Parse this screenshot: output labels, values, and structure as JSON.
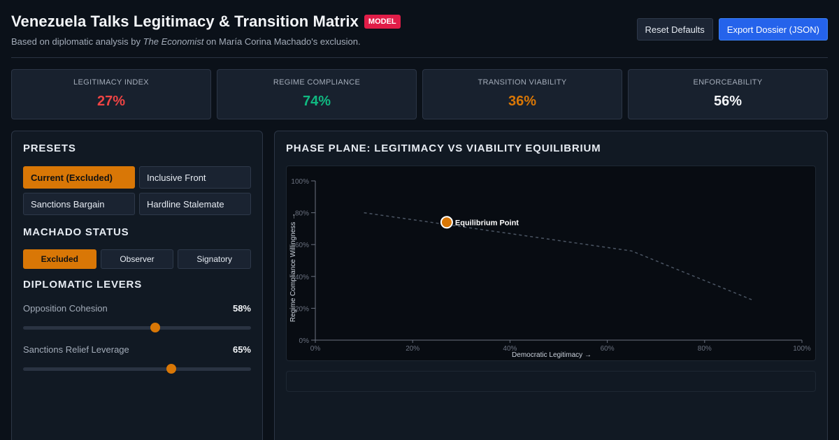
{
  "header": {
    "title": "Venezuela Talks Legitimacy & Transition Matrix",
    "badge": "MODEL",
    "subtitle_prefix": "Based on diplomatic analysis by ",
    "subtitle_source": "The Economist",
    "subtitle_suffix": " on María Corina Machado's exclusion.",
    "reset_label": "Reset Defaults",
    "export_label": "Export Dossier (JSON)"
  },
  "kpis": [
    {
      "label": "LEGITIMACY INDEX",
      "value": "27%",
      "color": "#ef4444"
    },
    {
      "label": "REGIME COMPLIANCE",
      "value": "74%",
      "color": "#10b981"
    },
    {
      "label": "TRANSITION VIABILITY",
      "value": "36%",
      "color": "#d97706"
    },
    {
      "label": "ENFORCEABILITY",
      "value": "56%",
      "color": "#f3f5f8"
    }
  ],
  "presets": {
    "title": "PRESETS",
    "items": [
      "Current (Excluded)",
      "Inclusive Front",
      "Sanctions Bargain",
      "Hardline Stalemate"
    ],
    "active": 0
  },
  "machado": {
    "title": "MACHADO STATUS",
    "options": [
      "Excluded",
      "Observer",
      "Signatory"
    ],
    "active": 0
  },
  "levers": {
    "title": "DIPLOMATIC LEVERS",
    "items": [
      {
        "label": "Opposition Cohesion",
        "value_text": "58%",
        "value": 0.58
      },
      {
        "label": "Sanctions Relief Leverage",
        "value_text": "65%",
        "value": 0.65
      }
    ]
  },
  "chart_panel": {
    "title": "PHASE PLANE: LEGITIMACY VS VIABILITY EQUILIBRIUM"
  },
  "chart_data": {
    "type": "line",
    "xlabel": "Democratic Legitimacy →",
    "ylabel": "Regime Compliance Willingness →",
    "xlim": [
      0,
      100
    ],
    "ylim": [
      0,
      100
    ],
    "x_ticks": [
      "0%",
      "20%",
      "40%",
      "60%",
      "80%",
      "100%"
    ],
    "y_ticks": [
      "0%",
      "20%",
      "40%",
      "60%",
      "80%",
      "100%"
    ],
    "series": [
      {
        "x": [
          10,
          65,
          90
        ],
        "y": [
          80,
          56,
          25
        ],
        "style": "dashed"
      }
    ],
    "point": {
      "label": "Equilibrium Point",
      "x": 27,
      "y": 74
    },
    "colors": {
      "point": "#d97706",
      "line": "#4b5563",
      "axis": "#6b7280"
    }
  }
}
